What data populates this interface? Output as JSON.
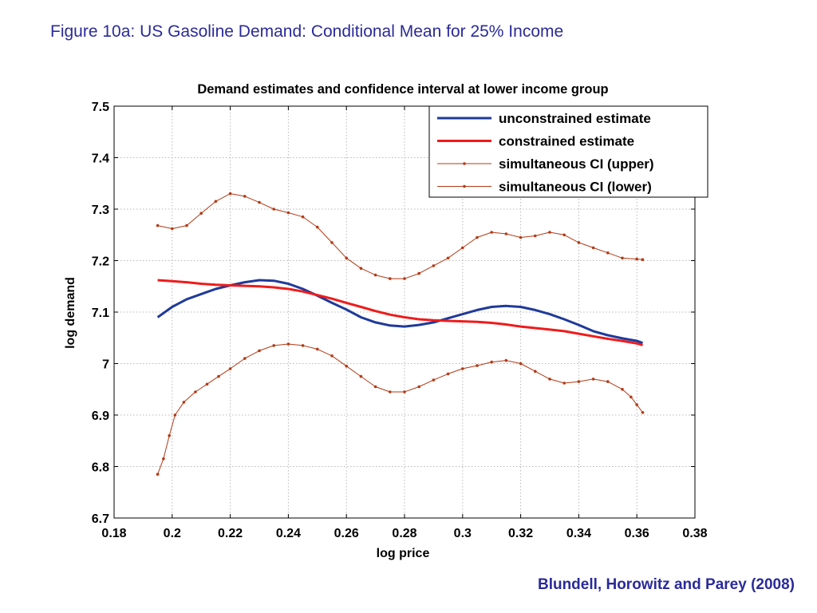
{
  "slide": {
    "title": "Figure 10a:  US Gasoline Demand: Conditional Mean for 25% Income",
    "citation": "Blundell, Horowitz and Parey (2008)"
  },
  "colors": {
    "slide_text": "#2a2a9a",
    "unconstrained": "#1f3a9a",
    "constrained": "#ee1c1c",
    "ci": "#b33a16",
    "grid": "#b8b8b8"
  },
  "chart_data": {
    "type": "line",
    "title": "Demand estimates and confidence interval at lower income group",
    "xlabel": "log price",
    "ylabel": "log demand",
    "xlim": [
      0.18,
      0.38
    ],
    "ylim": [
      6.7,
      7.5
    ],
    "xticks": [
      0.18,
      0.2,
      0.22,
      0.24,
      0.26,
      0.28,
      0.3,
      0.32,
      0.34,
      0.36,
      0.38
    ],
    "xtick_labels": [
      "0.18",
      "0.2",
      "0.22",
      "0.24",
      "0.26",
      "0.28",
      "0.3",
      "0.32",
      "0.34",
      "0.36",
      "0.38"
    ],
    "yticks": [
      6.7,
      6.8,
      6.9,
      7.0,
      7.1,
      7.2,
      7.3,
      7.4,
      7.5
    ],
    "ytick_labels": [
      "6.7",
      "6.8",
      "6.9",
      "7",
      "7.1",
      "7.2",
      "7.3",
      "7.4",
      "7.5"
    ],
    "grid": true,
    "legend_position": "top-right",
    "series": [
      {
        "name": "unconstrained estimate",
        "style": "solid",
        "x": [
          0.195,
          0.2,
          0.205,
          0.21,
          0.215,
          0.22,
          0.225,
          0.23,
          0.235,
          0.24,
          0.245,
          0.25,
          0.255,
          0.26,
          0.265,
          0.27,
          0.275,
          0.28,
          0.285,
          0.29,
          0.295,
          0.3,
          0.305,
          0.31,
          0.315,
          0.32,
          0.325,
          0.33,
          0.335,
          0.34,
          0.345,
          0.35,
          0.355,
          0.36,
          0.362
        ],
        "y": [
          7.09,
          7.11,
          7.125,
          7.135,
          7.145,
          7.152,
          7.158,
          7.162,
          7.161,
          7.155,
          7.145,
          7.132,
          7.118,
          7.105,
          7.09,
          7.08,
          7.074,
          7.072,
          7.075,
          7.08,
          7.088,
          7.096,
          7.104,
          7.11,
          7.112,
          7.11,
          7.104,
          7.096,
          7.086,
          7.075,
          7.063,
          7.055,
          7.049,
          7.044,
          7.04
        ]
      },
      {
        "name": "constrained estimate",
        "style": "solid",
        "x": [
          0.195,
          0.2,
          0.205,
          0.21,
          0.215,
          0.22,
          0.225,
          0.23,
          0.235,
          0.24,
          0.245,
          0.25,
          0.255,
          0.26,
          0.265,
          0.27,
          0.275,
          0.28,
          0.285,
          0.29,
          0.295,
          0.3,
          0.305,
          0.31,
          0.315,
          0.32,
          0.325,
          0.33,
          0.335,
          0.34,
          0.345,
          0.35,
          0.355,
          0.36,
          0.362
        ],
        "y": [
          7.162,
          7.16,
          7.158,
          7.155,
          7.153,
          7.152,
          7.151,
          7.15,
          7.148,
          7.145,
          7.14,
          7.133,
          7.126,
          7.118,
          7.11,
          7.102,
          7.095,
          7.09,
          7.086,
          7.084,
          7.083,
          7.082,
          7.081,
          7.079,
          7.076,
          7.072,
          7.069,
          7.066,
          7.063,
          7.058,
          7.053,
          7.048,
          7.044,
          7.039,
          7.036
        ]
      },
      {
        "name": "simultaneous CI (upper)",
        "style": "dotted-markers",
        "x": [
          0.195,
          0.2,
          0.205,
          0.21,
          0.215,
          0.22,
          0.225,
          0.23,
          0.235,
          0.24,
          0.245,
          0.25,
          0.255,
          0.26,
          0.265,
          0.27,
          0.275,
          0.28,
          0.285,
          0.29,
          0.295,
          0.3,
          0.305,
          0.31,
          0.315,
          0.32,
          0.325,
          0.33,
          0.335,
          0.34,
          0.345,
          0.35,
          0.355,
          0.36,
          0.362
        ],
        "y": [
          7.268,
          7.262,
          7.268,
          7.292,
          7.315,
          7.33,
          7.325,
          7.313,
          7.3,
          7.293,
          7.285,
          7.265,
          7.235,
          7.205,
          7.185,
          7.172,
          7.165,
          7.165,
          7.175,
          7.19,
          7.205,
          7.225,
          7.245,
          7.255,
          7.252,
          7.245,
          7.248,
          7.255,
          7.25,
          7.235,
          7.225,
          7.215,
          7.205,
          7.203,
          7.202
        ]
      },
      {
        "name": "simultaneous CI (lower)",
        "style": "dotted-markers",
        "x": [
          0.195,
          0.197,
          0.199,
          0.201,
          0.204,
          0.208,
          0.212,
          0.216,
          0.22,
          0.225,
          0.23,
          0.235,
          0.24,
          0.245,
          0.25,
          0.255,
          0.26,
          0.265,
          0.27,
          0.275,
          0.28,
          0.285,
          0.29,
          0.295,
          0.3,
          0.305,
          0.31,
          0.315,
          0.32,
          0.325,
          0.33,
          0.335,
          0.34,
          0.345,
          0.35,
          0.355,
          0.358,
          0.36,
          0.362
        ],
        "y": [
          6.785,
          6.815,
          6.86,
          6.9,
          6.925,
          6.945,
          6.96,
          6.975,
          6.99,
          7.01,
          7.025,
          7.035,
          7.038,
          7.035,
          7.028,
          7.015,
          6.995,
          6.975,
          6.955,
          6.945,
          6.945,
          6.955,
          6.968,
          6.98,
          6.99,
          6.996,
          7.003,
          7.006,
          7.0,
          6.985,
          6.97,
          6.962,
          6.965,
          6.97,
          6.965,
          6.95,
          6.935,
          6.92,
          6.905
        ]
      }
    ]
  }
}
